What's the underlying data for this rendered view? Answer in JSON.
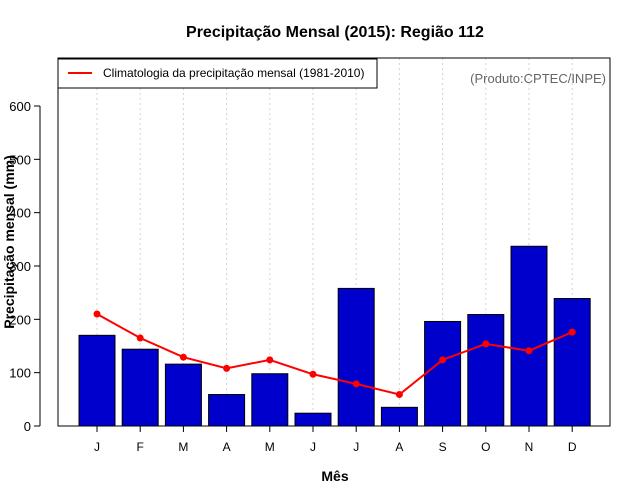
{
  "colors": {
    "bar": "#0000cc",
    "line": "#ff0000",
    "grid": "#d3d3d3",
    "credit": "#666666"
  },
  "credit": "(Produto:CPTEC/INPE)",
  "chart_data": {
    "type": "bar",
    "title": "Precipitação Mensal (2015): Região 112",
    "xlabel": "Mês",
    "ylabel": "Precipitação mensal (mm)",
    "ylim": [
      0,
      690
    ],
    "yticks": [
      0,
      100,
      200,
      300,
      400,
      500,
      600
    ],
    "categories": [
      "J",
      "F",
      "M",
      "A",
      "M",
      "J",
      "J",
      "A",
      "S",
      "O",
      "N",
      "D"
    ],
    "series": [
      {
        "name": "Precipitação mensal (2015)",
        "type": "bar",
        "values": [
          170,
          144,
          116,
          59,
          98,
          24,
          258,
          35,
          196,
          209,
          337,
          239
        ]
      },
      {
        "name": "Climatologia da precipitação mensal (1981-2010)",
        "type": "line",
        "values": [
          210,
          165,
          129,
          108,
          124,
          97,
          79,
          59,
          124,
          154,
          141,
          176
        ]
      }
    ],
    "legend": {
      "position": "top-left",
      "entries": [
        "Climatologia da precipitação mensal (1981-2010)"
      ]
    },
    "grid": "vertical dotted"
  }
}
